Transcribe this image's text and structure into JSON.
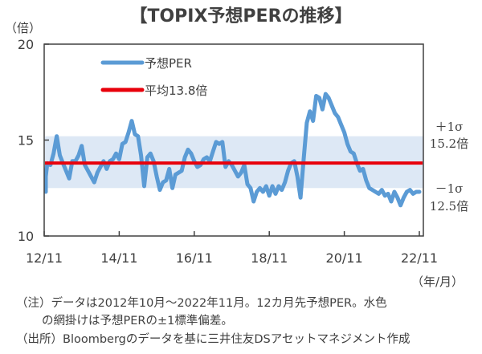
{
  "title": "【TOPIX予想PERの推移】",
  "y_unit": "（倍）",
  "x_unit": "（年/月）",
  "notes": [
    "（注）データは2012年10月～2022年11月。12カ月先予想PER。水色",
    "の網掛けは予想PERの±1標準偏差。",
    "（出所）Bloombergのデータを基に三井住友DSアセットマネジメント作成"
  ],
  "colors": {
    "series": "#5b9bd5",
    "mean": "#e8000b",
    "band": "#dde8f5",
    "axis": "#404040"
  },
  "chart_data": {
    "type": "line",
    "title": "【TOPIX予想PERの推移】",
    "xlabel": "（年/月）",
    "ylabel": "（倍）",
    "ylim": [
      10,
      20
    ],
    "yticks": [
      "10",
      "15",
      "20"
    ],
    "xticks": [
      "12/11",
      "14/11",
      "16/11",
      "18/11",
      "20/11",
      "22/11"
    ],
    "x_start": "2012-10",
    "x_end": "2022-11",
    "legend": [
      {
        "label": "予想PER",
        "color": "#5b9bd5"
      },
      {
        "label": "平均13.8倍",
        "color": "#e8000b"
      }
    ],
    "legend_position": "top-left",
    "mean": 13.8,
    "band": {
      "upper": 15.2,
      "lower": 12.5
    },
    "band_labels": {
      "upper_sigma": "＋1σ",
      "upper_value": "15.2倍",
      "lower_sigma": "－1σ",
      "lower_value": "12.5倍"
    },
    "series": [
      {
        "name": "予想PER",
        "values": [
          12.3,
          13.1,
          13.8,
          13.7,
          14.3,
          15.2,
          14.2,
          13.8,
          13.4,
          13.0,
          13.9,
          13.9,
          14.2,
          14.7,
          13.7,
          13.4,
          13.1,
          12.8,
          13.3,
          13.6,
          13.9,
          13.5,
          13.9,
          14.0,
          14.3,
          14.0,
          14.8,
          14.9,
          15.4,
          16.0,
          15.3,
          15.2,
          14.2,
          12.6,
          14.1,
          14.3,
          13.9,
          13.1,
          12.4,
          12.8,
          12.9,
          13.5,
          12.5,
          13.2,
          13.3,
          13.4,
          14.1,
          14.5,
          14.3,
          13.9,
          13.6,
          13.7,
          14.0,
          14.1,
          13.9,
          14.4,
          14.9,
          14.8,
          14.9,
          13.6,
          13.9,
          13.7,
          13.4,
          13.1,
          13.3,
          13.7,
          12.7,
          12.5,
          11.8,
          12.3,
          12.5,
          12.3,
          12.6,
          12.1,
          12.6,
          12.2,
          12.6,
          12.4,
          12.8,
          13.4,
          13.8,
          13.9,
          13.1,
          12.0,
          14.0,
          15.9,
          16.5,
          16.0,
          17.3,
          17.2,
          16.6,
          17.4,
          17.2,
          16.8,
          16.4,
          16.2,
          15.8,
          15.4,
          14.8,
          14.4,
          14.3,
          13.8,
          13.4,
          13.5,
          12.9,
          12.5,
          12.4,
          12.3,
          12.2,
          12.4,
          12.1,
          12.2,
          11.8,
          12.3,
          12.0,
          11.6,
          12.0,
          12.3,
          12.4,
          12.2,
          12.3,
          12.3
        ]
      }
    ]
  }
}
